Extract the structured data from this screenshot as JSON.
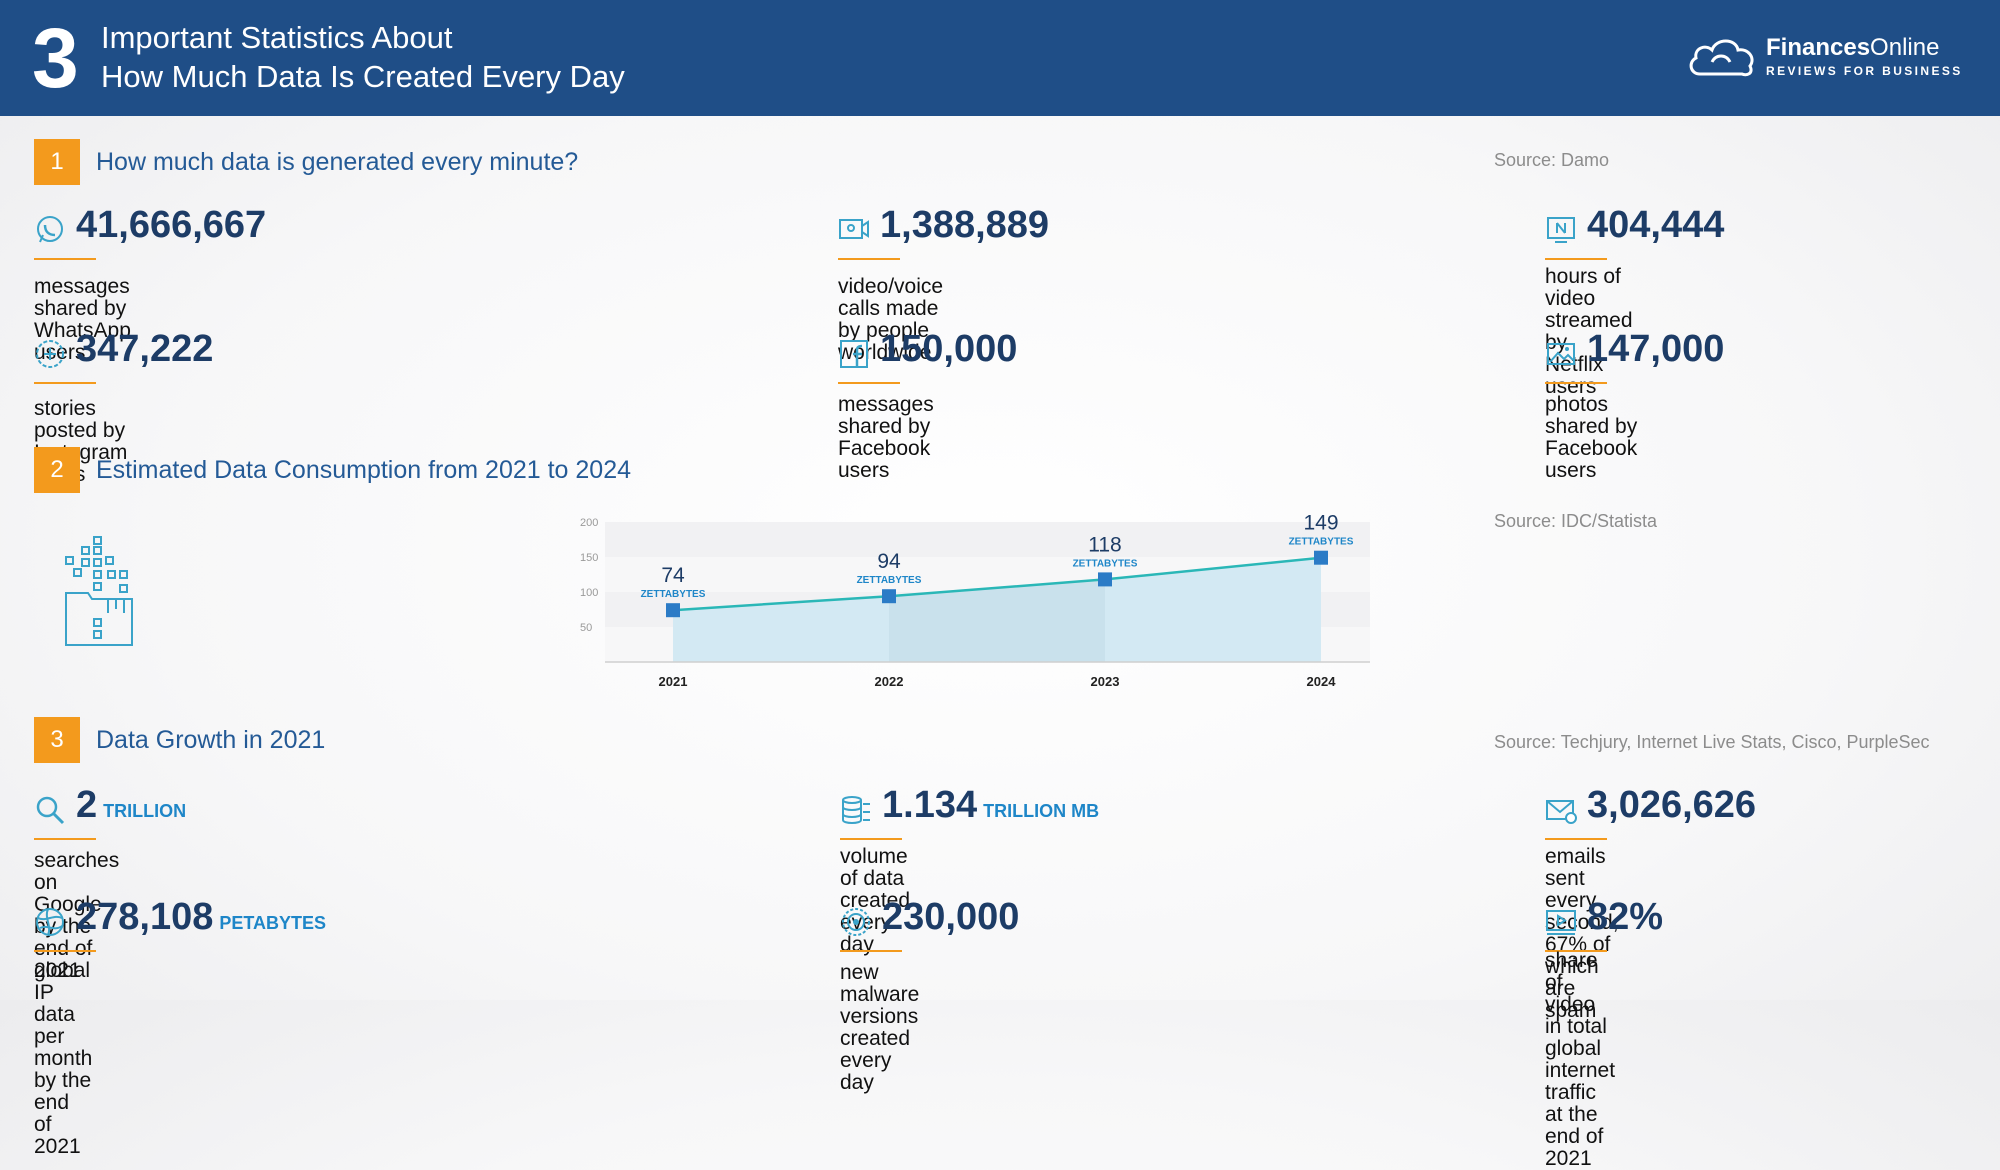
{
  "header": {
    "number": "3",
    "title_line1": "Important Statistics About",
    "title_line2": "How Much Data Is Created Every Day",
    "brand_bold": "Finances",
    "brand_regular": "Online",
    "brand_tagline": "REVIEWS FOR BUSINESS",
    "color": "#1f4e87"
  },
  "accent": "#f39a1d",
  "section1": {
    "number": "1",
    "title": "How much data is generated every minute?",
    "source": "Source: Damo",
    "stats": [
      {
        "icon": "whatsapp-icon",
        "value": "41,666,667",
        "desc": "messages shared by WhatsApp users"
      },
      {
        "icon": "video-call-icon",
        "value": "1,388,889",
        "desc": "video/voice calls made by people worldwide"
      },
      {
        "icon": "netflix-icon",
        "value": "404,444",
        "desc1": "hours of video streamed by",
        "desc2": "Netflix users"
      },
      {
        "icon": "instagram-icon",
        "value": "347,222",
        "desc": "stories posted by Instagram users"
      },
      {
        "icon": "facebook-icon",
        "value": "150,000",
        "desc": "messages shared by Facebook users"
      },
      {
        "icon": "photo-icon",
        "value": "147,000",
        "desc": "photos shared by Facebook users"
      }
    ]
  },
  "section2": {
    "number": "2",
    "title": "Estimated Data Consumption from 2021 to 2024",
    "source": "Source: IDC/Statista"
  },
  "section3": {
    "number": "3",
    "title": "Data Growth in 2021",
    "source": "Source: Techjury, Internet Live Stats, Cisco, PurpleSec",
    "stats": [
      {
        "icon": "search-icon",
        "value": "2",
        "unit": "TRILLION",
        "desc": "searches on Google by the end of 2021"
      },
      {
        "icon": "database-icon",
        "value": "1.134",
        "unit": "TRILLION MB",
        "desc": "volume of data created every day"
      },
      {
        "icon": "email-icon",
        "value": "3,026,626",
        "desc1": "emails sent every second, 67% of",
        "desc2": "which are spam"
      },
      {
        "icon": "globe-icon",
        "value": "278,108",
        "unit": "PETABYTES",
        "desc": "global IP data per month by the end of 2021"
      },
      {
        "icon": "malware-icon",
        "value": "230,000",
        "desc": "new malware versions created every day"
      },
      {
        "icon": "video-play-icon",
        "value": "82%",
        "desc1": "share of video in total global internet",
        "desc2": "traffic at the end of 2021"
      }
    ]
  },
  "chart_data": {
    "type": "area",
    "title": "Estimated Data Consumption from 2021 to 2024",
    "categories": [
      "2021",
      "2022",
      "2023",
      "2024"
    ],
    "values": [
      74,
      94,
      118,
      149
    ],
    "value_unit": "ZETTABYTES",
    "yticks": [
      50,
      100,
      150,
      200
    ],
    "ylim": [
      0,
      200
    ],
    "line_color": "#2ab7b7",
    "marker_color": "#2b7bc6",
    "fill_color": "#d3e9f3"
  }
}
